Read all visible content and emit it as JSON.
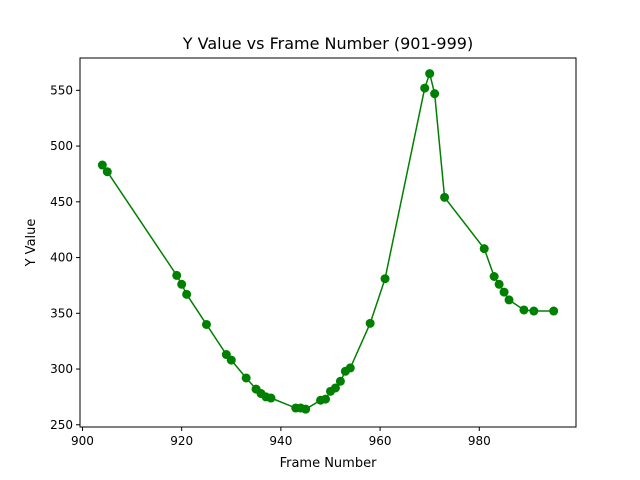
{
  "chart_data": {
    "type": "line",
    "title": "Y Value vs Frame Number (901-999)",
    "xlabel": "Frame Number",
    "ylabel": "Y Value",
    "xlim": [
      899.5,
      999.5
    ],
    "ylim": [
      248,
      579
    ],
    "xticks": [
      900,
      920,
      940,
      960,
      980
    ],
    "yticks": [
      250,
      300,
      350,
      400,
      450,
      500,
      550
    ],
    "grid": false,
    "color": "#008000",
    "marker": "circle",
    "series": [
      {
        "x": [
          904,
          905,
          919,
          920,
          921,
          925,
          929,
          930,
          933,
          935,
          936,
          937,
          938,
          943,
          944,
          945,
          948,
          949,
          950,
          951,
          952,
          953,
          954,
          958,
          961,
          969,
          970,
          971,
          973,
          981,
          983,
          984,
          985,
          986,
          989,
          991,
          995
        ],
        "y": [
          483,
          477,
          384,
          376,
          367,
          340,
          313,
          308,
          292,
          282,
          278,
          275,
          274,
          265,
          265,
          264,
          272,
          273,
          280,
          283,
          289,
          298,
          301,
          341,
          381,
          552,
          565,
          547,
          454,
          408,
          383,
          376,
          369,
          362,
          353,
          352,
          352
        ]
      }
    ]
  }
}
